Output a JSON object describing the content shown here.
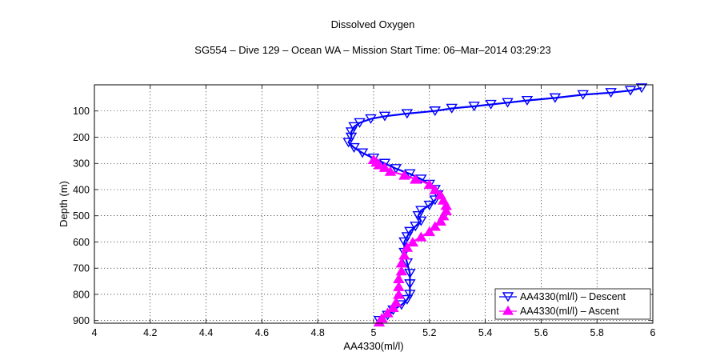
{
  "chart_data": {
    "type": "line",
    "title": "Dissolved Oxygen",
    "subtitle": "SG554 – Dive 129 – Ocean WA – Mission Start Time: 06–Mar–2014 03:29:23",
    "xlabel": "AA4330(ml/l)",
    "ylabel": "Depth (m)",
    "xlim": [
      4,
      6
    ],
    "ylim": [
      910,
      0
    ],
    "y_reversed": true,
    "grid": true,
    "legend_position": "bottom-right",
    "x_ticks": [
      "4",
      "4.2",
      "4.4",
      "4.6",
      "4.8",
      "5",
      "5.2",
      "5.4",
      "5.6",
      "5.8",
      "6"
    ],
    "y_ticks": [
      "100",
      "200",
      "300",
      "400",
      "500",
      "600",
      "700",
      "800",
      "900"
    ],
    "series": [
      {
        "name": "AA4330(ml/l) – Descent",
        "color": "#0000ff",
        "marker": "triangle-down",
        "points": [
          [
            5.96,
            12
          ],
          [
            5.92,
            22
          ],
          [
            5.85,
            30
          ],
          [
            5.75,
            38
          ],
          [
            5.65,
            50
          ],
          [
            5.55,
            60
          ],
          [
            5.48,
            68
          ],
          [
            5.42,
            75
          ],
          [
            5.36,
            82
          ],
          [
            5.28,
            90
          ],
          [
            5.22,
            100
          ],
          [
            5.12,
            110
          ],
          [
            5.04,
            120
          ],
          [
            4.99,
            130
          ],
          [
            4.95,
            145
          ],
          [
            4.93,
            160
          ],
          [
            4.92,
            180
          ],
          [
            4.92,
            200
          ],
          [
            4.91,
            220
          ],
          [
            4.93,
            240
          ],
          [
            4.96,
            260
          ],
          [
            5.0,
            280
          ],
          [
            5.04,
            300
          ],
          [
            5.08,
            320
          ],
          [
            5.13,
            340
          ],
          [
            5.17,
            360
          ],
          [
            5.2,
            380
          ],
          [
            5.22,
            400
          ],
          [
            5.23,
            420
          ],
          [
            5.22,
            440
          ],
          [
            5.2,
            460
          ],
          [
            5.17,
            480
          ],
          [
            5.16,
            500
          ],
          [
            5.17,
            520
          ],
          [
            5.15,
            540
          ],
          [
            5.13,
            560
          ],
          [
            5.12,
            580
          ],
          [
            5.11,
            600
          ],
          [
            5.11,
            640
          ],
          [
            5.12,
            680
          ],
          [
            5.13,
            720
          ],
          [
            5.13,
            760
          ],
          [
            5.13,
            800
          ],
          [
            5.12,
            820
          ],
          [
            5.1,
            840
          ],
          [
            5.07,
            860
          ],
          [
            5.05,
            880
          ],
          [
            5.02,
            900
          ]
        ]
      },
      {
        "name": "AA4330(ml/l) – Ascent",
        "color": "#ff00ff",
        "marker": "triangle-up",
        "points": [
          [
            5.02,
            905
          ],
          [
            5.03,
            890
          ],
          [
            5.05,
            870
          ],
          [
            5.07,
            850
          ],
          [
            5.08,
            830
          ],
          [
            5.09,
            800
          ],
          [
            5.09,
            770
          ],
          [
            5.09,
            740
          ],
          [
            5.1,
            710
          ],
          [
            5.1,
            680
          ],
          [
            5.11,
            650
          ],
          [
            5.12,
            620
          ],
          [
            5.14,
            600
          ],
          [
            5.17,
            580
          ],
          [
            5.2,
            560
          ],
          [
            5.22,
            540
          ],
          [
            5.24,
            520
          ],
          [
            5.25,
            500
          ],
          [
            5.26,
            480
          ],
          [
            5.26,
            460
          ],
          [
            5.25,
            440
          ],
          [
            5.24,
            420
          ],
          [
            5.22,
            400
          ],
          [
            5.2,
            380
          ],
          [
            5.15,
            360
          ],
          [
            5.11,
            345
          ],
          [
            5.06,
            330
          ],
          [
            5.04,
            315
          ],
          [
            5.02,
            305
          ],
          [
            5.01,
            295
          ],
          [
            5.0,
            285
          ]
        ]
      }
    ]
  }
}
